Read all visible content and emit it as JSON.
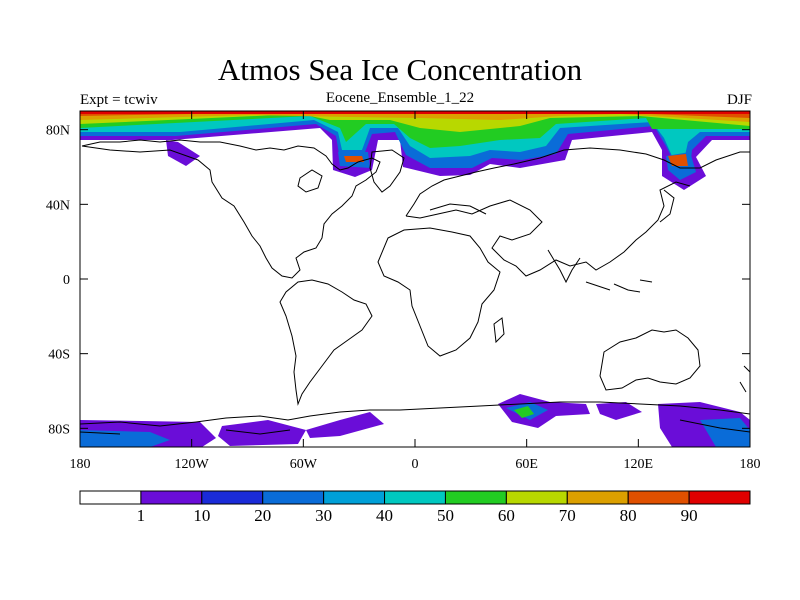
{
  "title": "Atmos Sea Ice Concentration",
  "subtitle_left": "Expt = tcwiv",
  "subtitle_center": "Eocene_Ensemble_1_22",
  "subtitle_right": "DJF",
  "axes": {
    "x_ticks": [
      "180",
      "120W",
      "60W",
      "0",
      "60E",
      "120E",
      "180"
    ],
    "x_values": [
      -180,
      -120,
      -60,
      0,
      60,
      120,
      180
    ],
    "y_ticks": [
      "80N",
      "40N",
      "0",
      "40S",
      "80S"
    ],
    "y_values": [
      80,
      40,
      0,
      -40,
      -80
    ],
    "lon_range": [
      -180,
      180
    ],
    "lat_range": [
      -90,
      90
    ]
  },
  "colorbar": {
    "levels": [
      "1",
      "10",
      "20",
      "30",
      "40",
      "50",
      "60",
      "70",
      "80",
      "90"
    ],
    "colors": [
      "#ffffff",
      "#6a0dd8",
      "#1a2bd8",
      "#0a6cd8",
      "#00a0d8",
      "#00c8c0",
      "#22cc22",
      "#b8d800",
      "#dca000",
      "#e05000",
      "#e00000"
    ]
  }
}
